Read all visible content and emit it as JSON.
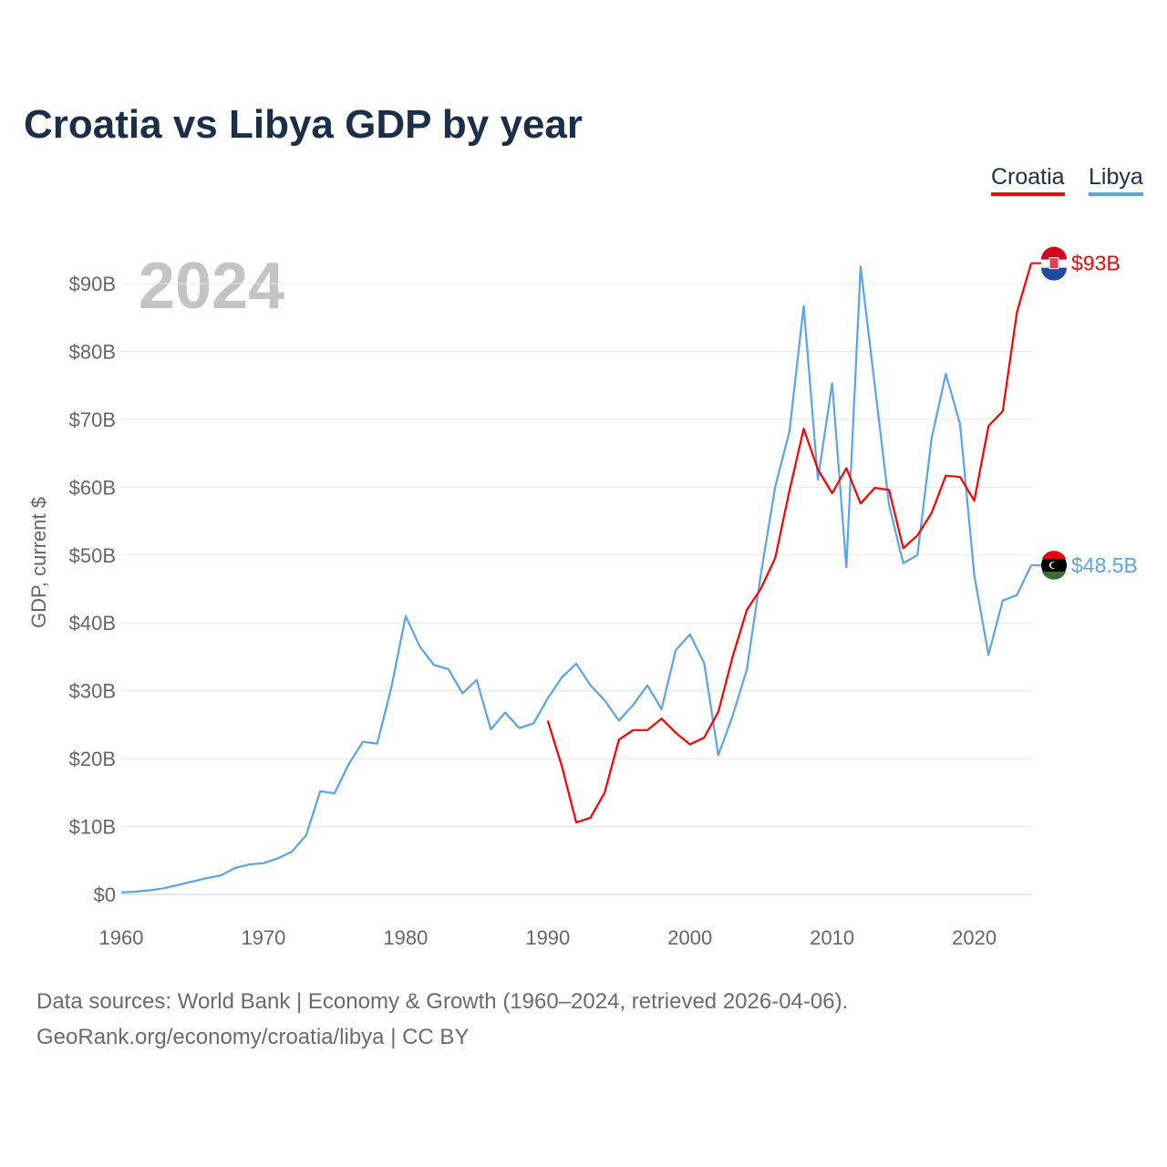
{
  "chart_data": {
    "type": "line",
    "title": "Croatia vs Libya GDP by year",
    "xlabel": "",
    "ylabel": "GDP, current $",
    "xlim": [
      1960,
      2024
    ],
    "ylim": [
      0,
      90
    ],
    "x_ticks": [
      1960,
      1970,
      1980,
      1990,
      2000,
      2010,
      2020
    ],
    "x_tick_labels": [
      "1960",
      "1970",
      "1980",
      "1990",
      "2000",
      "2010",
      "2020"
    ],
    "y_ticks": [
      0,
      10,
      20,
      30,
      40,
      50,
      60,
      70,
      80,
      90
    ],
    "y_tick_labels": [
      "$0",
      "$10B",
      "$20B",
      "$30B",
      "$40B",
      "$50B",
      "$60B",
      "$70B",
      "$80B",
      "$90B"
    ],
    "grid": true,
    "legend": "top-right",
    "year_label": "2024",
    "series": [
      {
        "name": "Croatia",
        "color": "#ff0000",
        "end_label": "$93B",
        "start_year": 1990,
        "values": [
          25.6,
          18.8,
          10.6,
          11.3,
          15.0,
          22.8,
          24.2,
          24.2,
          25.9,
          23.8,
          22.1,
          23.1,
          26.9,
          35.0,
          41.9,
          45.1,
          49.6,
          59.5,
          68.6,
          62.6,
          59.1,
          62.8,
          57.6,
          59.9,
          59.6,
          51.0,
          52.9,
          56.2,
          61.7,
          61.5,
          58.0,
          69.0,
          71.2,
          85.8,
          93.0
        ]
      },
      {
        "name": "Libya",
        "color": "#5ba4ea",
        "end_label": "$48.5B",
        "start_year": 1960,
        "values": [
          0.3,
          0.4,
          0.6,
          0.9,
          1.4,
          1.9,
          2.4,
          2.8,
          3.9,
          4.4,
          4.6,
          5.3,
          6.3,
          8.7,
          15.2,
          14.9,
          19.2,
          22.5,
          22.2,
          30.5,
          41.0,
          36.5,
          33.8,
          33.2,
          29.6,
          31.6,
          24.3,
          26.8,
          24.5,
          25.2,
          28.9,
          32.0,
          34.0,
          30.8,
          28.6,
          25.6,
          27.9,
          30.8,
          27.3,
          36.0,
          38.3,
          34.1,
          20.5,
          26.3,
          33.1,
          47.3,
          60.1,
          68.2,
          86.7,
          61.1,
          75.3,
          48.2,
          92.5,
          75.0,
          57.4,
          48.8,
          50.0,
          67.2,
          76.7,
          69.3,
          47.0,
          35.3,
          43.3,
          44.1,
          48.5
        ]
      }
    ]
  },
  "footer": {
    "line1": "Data sources: World Bank | Economy & Growth (1960–2024, retrieved 2026-04-06).",
    "line2": "GeoRank.org/economy/croatia/libya | CC BY"
  }
}
